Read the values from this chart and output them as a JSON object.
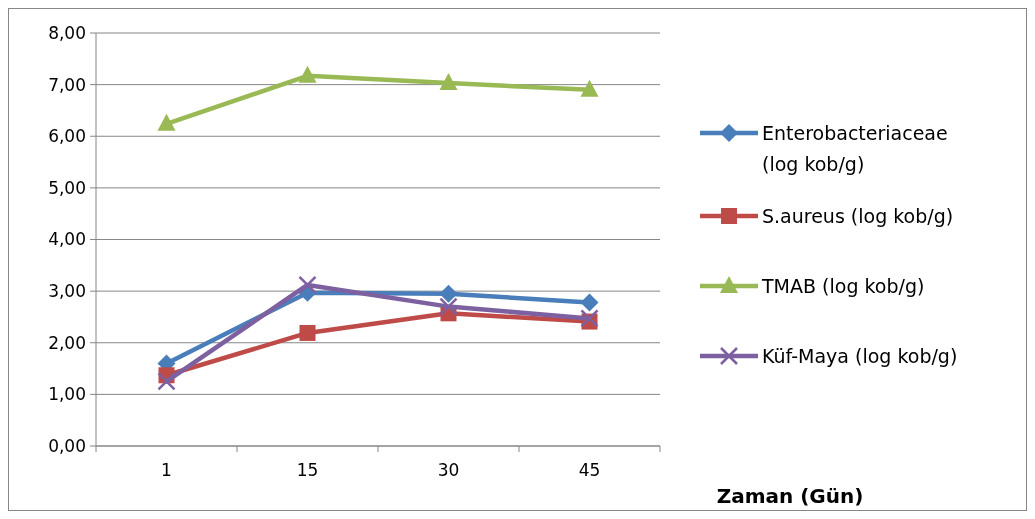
{
  "chart_data": {
    "type": "line",
    "xlabel": "Zaman (Gün)",
    "categories": [
      "1",
      "15",
      "30",
      "45"
    ],
    "ylim": [
      0,
      8
    ],
    "yticks": [
      {
        "value": 0,
        "label": "0,00"
      },
      {
        "value": 1,
        "label": "1,00"
      },
      {
        "value": 2,
        "label": "2,00"
      },
      {
        "value": 3,
        "label": "3,00"
      },
      {
        "value": 4,
        "label": "4,00"
      },
      {
        "value": 5,
        "label": "5,00"
      },
      {
        "value": 6,
        "label": "6,00"
      },
      {
        "value": 7,
        "label": "7,00"
      },
      {
        "value": 8,
        "label": "8,00"
      }
    ],
    "grid": "y",
    "legend": "right",
    "series": [
      {
        "name": "Enterobacteriaceae (log kob/g)",
        "color": "#4a7ebb",
        "marker": "diamond",
        "values": [
          1.6,
          2.97,
          2.95,
          2.78
        ]
      },
      {
        "name": "S.aureus (log kob/g)",
        "color": "#be4b48",
        "marker": "square",
        "values": [
          1.37,
          2.19,
          2.57,
          2.41
        ]
      },
      {
        "name": "TMAB (log kob/g)",
        "color": "#98b954",
        "marker": "triangle",
        "values": [
          6.24,
          7.17,
          7.03,
          6.9
        ]
      },
      {
        "name": "Küf-Maya (log kob/g)",
        "color": "#7d60a0",
        "marker": "cross",
        "values": [
          1.25,
          3.12,
          2.7,
          2.47
        ]
      }
    ]
  }
}
